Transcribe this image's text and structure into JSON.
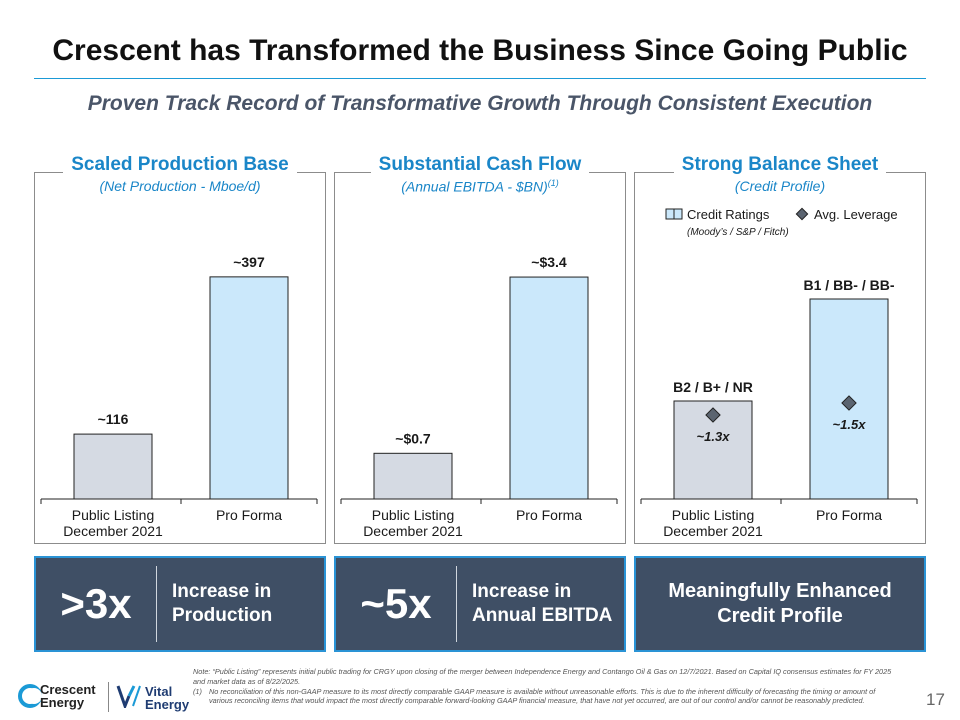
{
  "header": {
    "title": "Crescent has Transformed the Business Since Going Public",
    "subtitle": "Proven Track Record of Transformative Growth Through Consistent Execution"
  },
  "panels": [
    {
      "title": "Scaled Production Base",
      "subtitle": "(Net Production - Mboe/d)",
      "footnote_ref": ""
    },
    {
      "title": "Substantial Cash Flow",
      "subtitle": "(Annual EBITDA - $BN)",
      "footnote_ref": "(1)"
    },
    {
      "title": "Strong Balance Sheet",
      "subtitle": "(Credit Profile)",
      "footnote_ref": ""
    }
  ],
  "chart_data": [
    {
      "type": "bar",
      "categories": [
        "Public Listing\nDecember 2021",
        "Pro Forma"
      ],
      "values": [
        116,
        397
      ],
      "data_labels": [
        "~116",
        "~397"
      ],
      "title": "Scaled Production Base",
      "ylabel": "Net Production - Mboe/d",
      "ylim": [
        0,
        420
      ],
      "colors": [
        "#d5dae3",
        "#cbe8fb"
      ]
    },
    {
      "type": "bar",
      "categories": [
        "Public Listing\nDecember 2021",
        "Pro Forma"
      ],
      "values": [
        0.7,
        3.4
      ],
      "data_labels": [
        "~$0.7",
        "~$3.4"
      ],
      "title": "Substantial Cash Flow",
      "ylabel": "Annual EBITDA - $BN",
      "ylim": [
        0,
        3.6
      ],
      "colors": [
        "#d5dae3",
        "#cbe8fb"
      ]
    },
    {
      "type": "bar",
      "categories": [
        "Public Listing\nDecember 2021",
        "Pro Forma"
      ],
      "bar_labels": [
        "B2 / B+ / NR",
        "B1 / BB- / BB-"
      ],
      "leverage_values": [
        1.3,
        1.5
      ],
      "leverage_labels": [
        "~1.3x",
        "~1.5x"
      ],
      "title": "Strong Balance Sheet",
      "ylabel": "Credit Profile",
      "legend": {
        "credit_ratings": "Credit Ratings",
        "credit_ratings_sub": "(Moody’s / S&P / Fitch)",
        "avg_leverage": "Avg. Leverage"
      },
      "colors": [
        "#d5dae3",
        "#cbe8fb"
      ],
      "marker_color": "#5b6470"
    }
  ],
  "stats": [
    {
      "big": ">3x",
      "text": "Increase in Production"
    },
    {
      "big": "~5x",
      "text": "Increase in Annual EBITDA"
    },
    {
      "big": "",
      "text": "Meaningfully Enhanced Credit Profile"
    }
  ],
  "notes": {
    "note": "Note: “Public Listing” represents initial public trading for CRGY upon closing of the merger between Independence Energy and Contango Oil & Gas on 12/7/2021. Based on Capital IQ consensus estimates for FY 2025 and market data as of 8/22/2025.",
    "fn_marker": "(1)",
    "fn_text": "No reconciliation of this non-GAAP measure to its most directly comparable GAAP measure is available without unreasonable efforts. This is due to the inherent difficulty of forecasting the timing or amount of various reconciling items that would impact the most directly comparable forward-looking GAAP financial measure, that have not yet occurred, are out of our control and/or cannot be reasonably predicted."
  },
  "footer": {
    "page_number": "17",
    "logo1_line1": "Crescent",
    "logo1_line2": "Energy",
    "logo2_line1": "Vital",
    "logo2_line2": "Energy"
  },
  "colors": {
    "accent": "#1a86c8",
    "stat_bg": "#3f4f65"
  }
}
